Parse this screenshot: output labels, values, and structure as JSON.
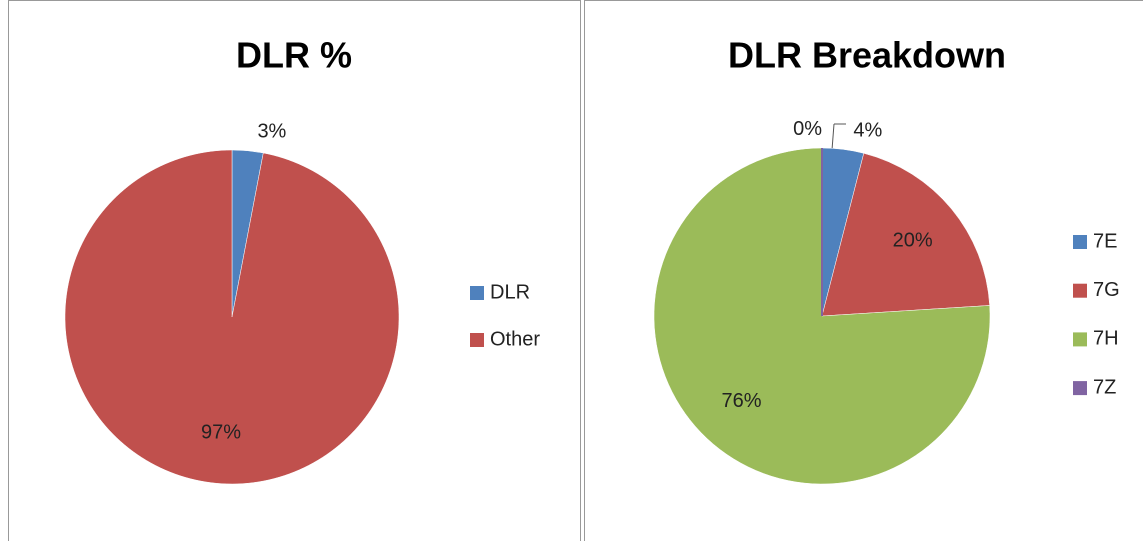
{
  "chart_data": [
    {
      "type": "pie",
      "title": "DLR %",
      "categories": [
        "DLR",
        "Other"
      ],
      "values": [
        3,
        97
      ],
      "value_labels": [
        "3%",
        "97%"
      ],
      "colors": [
        "#4f81bd",
        "#c0504d"
      ],
      "legend": "right"
    },
    {
      "type": "pie",
      "title": "DLR Breakdown",
      "categories": [
        "7E",
        "7G",
        "7H",
        "7Z"
      ],
      "values": [
        4,
        20,
        76,
        0
      ],
      "value_labels": [
        "4%",
        "20%",
        "76%",
        "0%"
      ],
      "colors": [
        "#4f81bd",
        "#c0504d",
        "#9bbb59",
        "#8064a2"
      ],
      "legend": "right"
    }
  ]
}
